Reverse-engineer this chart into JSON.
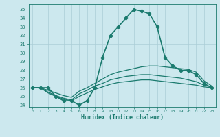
{
  "xlabel": "Humidex (Indice chaleur)",
  "ylabel": "",
  "bg_color": "#cce8ee",
  "line_color": "#1a7a6e",
  "grid_color": "#aacdd6",
  "xlim": [
    -0.5,
    23.5
  ],
  "ylim": [
    23.8,
    35.6
  ],
  "xticks": [
    0,
    1,
    2,
    3,
    4,
    5,
    6,
    7,
    8,
    9,
    10,
    11,
    12,
    13,
    14,
    15,
    16,
    17,
    18,
    19,
    20,
    21,
    22,
    23
  ],
  "yticks": [
    24,
    25,
    26,
    27,
    28,
    29,
    30,
    31,
    32,
    33,
    34,
    35
  ],
  "series": [
    {
      "x": [
        0,
        1,
        2,
        3,
        4,
        5,
        6,
        7,
        8,
        9,
        10,
        11,
        12,
        13,
        14,
        15,
        16,
        17,
        18,
        19,
        20,
        21,
        22,
        23
      ],
      "y": [
        26.0,
        26.0,
        26.0,
        25.0,
        24.5,
        24.5,
        24.0,
        24.5,
        26.0,
        29.5,
        32.0,
        33.0,
        34.0,
        35.0,
        34.8,
        34.5,
        33.0,
        29.5,
        28.5,
        28.0,
        28.0,
        27.5,
        26.5,
        26.0
      ],
      "marker": "D",
      "markersize": 2.5,
      "linewidth": 1.2
    },
    {
      "x": [
        0,
        1,
        2,
        3,
        4,
        5,
        6,
        7,
        8,
        9,
        10,
        11,
        12,
        13,
        14,
        15,
        16,
        17,
        18,
        19,
        20,
        21,
        22,
        23
      ],
      "y": [
        26.0,
        26.0,
        25.7,
        25.4,
        25.1,
        24.9,
        25.6,
        26.0,
        26.5,
        27.0,
        27.5,
        27.8,
        28.0,
        28.2,
        28.4,
        28.5,
        28.5,
        28.4,
        28.3,
        28.2,
        28.1,
        27.8,
        26.8,
        26.2
      ],
      "marker": null,
      "markersize": 0,
      "linewidth": 0.9
    },
    {
      "x": [
        0,
        1,
        2,
        3,
        4,
        5,
        6,
        7,
        8,
        9,
        10,
        11,
        12,
        13,
        14,
        15,
        16,
        17,
        18,
        19,
        20,
        21,
        22,
        23
      ],
      "y": [
        26.0,
        26.0,
        25.5,
        25.1,
        24.8,
        24.6,
        25.3,
        25.7,
        26.2,
        26.5,
        26.9,
        27.1,
        27.3,
        27.4,
        27.5,
        27.5,
        27.4,
        27.3,
        27.2,
        27.1,
        26.9,
        26.7,
        26.3,
        26.1
      ],
      "marker": null,
      "markersize": 0,
      "linewidth": 0.9
    },
    {
      "x": [
        0,
        1,
        2,
        3,
        4,
        5,
        6,
        7,
        8,
        9,
        10,
        11,
        12,
        13,
        14,
        15,
        16,
        17,
        18,
        19,
        20,
        21,
        22,
        23
      ],
      "y": [
        26.0,
        26.0,
        25.4,
        25.0,
        24.7,
        24.5,
        25.0,
        25.4,
        25.8,
        26.1,
        26.4,
        26.6,
        26.7,
        26.8,
        26.9,
        26.9,
        26.8,
        26.7,
        26.6,
        26.5,
        26.4,
        26.3,
        26.1,
        26.0
      ],
      "marker": null,
      "markersize": 0,
      "linewidth": 0.9
    }
  ]
}
